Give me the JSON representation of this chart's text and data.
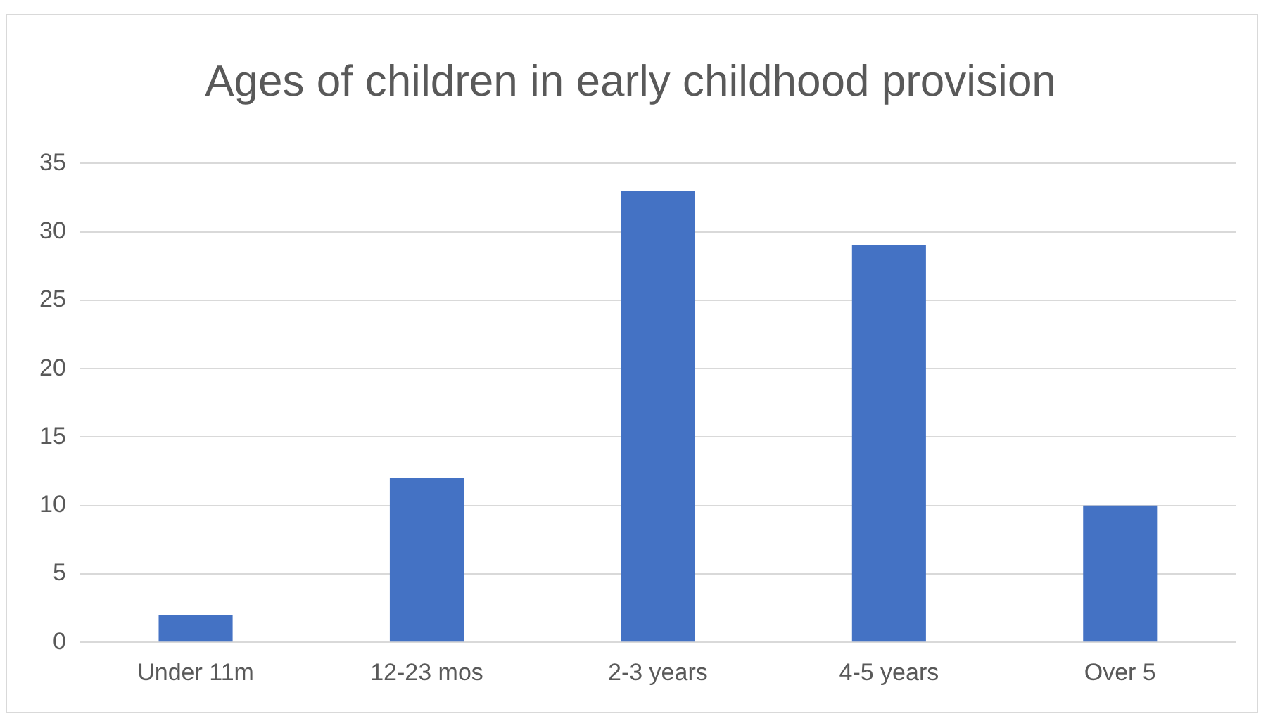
{
  "chart_data": {
    "type": "bar",
    "title": "Ages of children in early childhood provision",
    "categories": [
      "Under 11m",
      "12-23 mos",
      "2-3 years",
      "4-5 years",
      "Over 5"
    ],
    "values": [
      2,
      12,
      33,
      29,
      10
    ],
    "color": "#4472c4",
    "ylim": [
      0,
      35
    ],
    "yticks": [
      0,
      5,
      10,
      15,
      20,
      25,
      30,
      35
    ],
    "grid": "y",
    "legend": false
  }
}
